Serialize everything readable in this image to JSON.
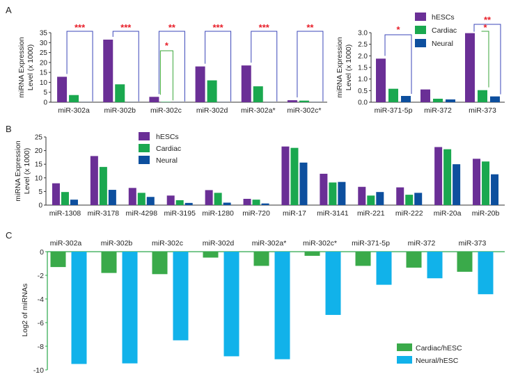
{
  "colors": {
    "hESCs": "#6a2f96",
    "Cardiac": "#1aa84f",
    "Neural": "#0d4f9e",
    "CardiacHESC": "#3aaa4a",
    "NeuralHESC": "#11b2ea",
    "star": "#e8202a",
    "bracketBlue": "#3a46b8",
    "bracketGreen": "#3aa63a",
    "axisC": "#2aa84a"
  },
  "chart_data": [
    {
      "panel": "A",
      "type": "bar",
      "panel_label": "A",
      "ylabel": "miRNA Expression Level (x 1000)",
      "ylim": [
        0,
        35
      ],
      "yticks": [
        0,
        5,
        10,
        15,
        20,
        25,
        30,
        35
      ],
      "categories": [
        "miR-302a",
        "miR-302b",
        "miR-302c",
        "miR-302d",
        "miR-302a*",
        "miR-302c*"
      ],
      "series": [
        {
          "name": "hESCs",
          "values": [
            12.8,
            31.5,
            2.7,
            18.0,
            18.5,
            1.0
          ]
        },
        {
          "name": "Cardiac",
          "values": [
            3.6,
            9.0,
            0.2,
            11.0,
            8.0,
            0.8
          ]
        },
        {
          "name": "Neural",
          "values": [
            0.05,
            0.05,
            0.05,
            0.05,
            0.05,
            0.05
          ]
        }
      ],
      "significance": [
        "***",
        "***",
        "**",
        "***",
        "***",
        "**"
      ],
      "extra_marks": [
        "*"
      ]
    },
    {
      "panel": "A-right",
      "type": "bar",
      "ylabel": "miRNA Expression Level (x 1000)",
      "ylim": [
        0,
        3
      ],
      "yticks": [
        "0.0",
        "0.5",
        "1.0",
        "1.5",
        "2.0",
        "2.5",
        "3.0"
      ],
      "categories": [
        "miR-371-5p",
        "miR-372",
        "miR-373"
      ],
      "series": [
        {
          "name": "hESCs",
          "values": [
            1.88,
            0.55,
            2.98
          ]
        },
        {
          "name": "Cardiac",
          "values": [
            0.58,
            0.15,
            0.52
          ]
        },
        {
          "name": "Neural",
          "values": [
            0.27,
            0.12,
            0.25
          ]
        }
      ],
      "significance": [
        "*",
        "",
        "**"
      ],
      "extra_marks": [
        "*"
      ],
      "legend": [
        "hESCs",
        "Cardiac",
        "Neural"
      ]
    },
    {
      "panel": "B",
      "type": "bar",
      "panel_label": "B",
      "ylabel": "miRNA Expression Level (x 1000)",
      "ylim": [
        0,
        25
      ],
      "yticks": [
        0,
        5,
        10,
        15,
        20,
        25
      ],
      "categories": [
        "miR-1308",
        "miR-3178",
        "miR-4298",
        "miR-3195",
        "miR-1280",
        "miR-720",
        "miR-17",
        "miR-3141",
        "miR-221",
        "miR-222",
        "miR-20a",
        "miR-20b"
      ],
      "series": [
        {
          "name": "hESCs",
          "values": [
            8.0,
            18.0,
            6.3,
            3.5,
            5.5,
            2.3,
            21.5,
            11.5,
            6.7,
            6.5,
            21.3,
            17.0
          ]
        },
        {
          "name": "Cardiac",
          "values": [
            4.8,
            14.0,
            4.5,
            1.8,
            4.5,
            2.0,
            21.0,
            8.3,
            3.5,
            3.8,
            20.5,
            16.0
          ]
        },
        {
          "name": "Neural",
          "values": [
            2.0,
            5.6,
            3.0,
            0.8,
            0.9,
            0.6,
            15.6,
            8.5,
            4.8,
            4.5,
            15.0,
            11.3
          ]
        }
      ],
      "legend": [
        "hESCs",
        "Cardiac",
        "Neural"
      ]
    },
    {
      "panel": "C",
      "type": "bar",
      "panel_label": "C",
      "ylabel": "Log2 of miRNAs",
      "ylim": [
        -10,
        0
      ],
      "yticks": [
        0,
        -2,
        -4,
        -6,
        -8,
        -10
      ],
      "categories": [
        "miR-302a",
        "miR-302b",
        "miR-302c",
        "miR-302d",
        "miR-302a*",
        "miR-302c*",
        "miR-371-5p",
        "miR-372",
        "miR-373"
      ],
      "series": [
        {
          "name": "Cardiac/hESC",
          "values": [
            -1.3,
            -1.8,
            -1.9,
            -0.5,
            -1.2,
            -0.35,
            -1.2,
            -1.35,
            -1.7
          ]
        },
        {
          "name": "Neural/hESC",
          "values": [
            -9.5,
            -9.45,
            -7.5,
            -8.85,
            -9.1,
            -5.35,
            -2.8,
            -2.25,
            -3.6
          ]
        }
      ],
      "legend": [
        "Cardiac/hESC",
        "Neural/hESC"
      ]
    }
  ]
}
